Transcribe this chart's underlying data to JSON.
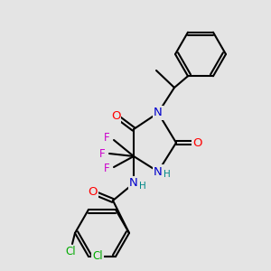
{
  "bg_color": "#e4e4e4",
  "bond_color": "#000000",
  "bond_width": 1.5,
  "atom_colors": {
    "O": "#ff0000",
    "N": "#0000cc",
    "F": "#cc00cc",
    "Cl": "#00aa00",
    "C": "#000000",
    "H": "#008888"
  },
  "font_size": 8.5,
  "fig_size": [
    3.0,
    3.0
  ],
  "dpi": 100
}
